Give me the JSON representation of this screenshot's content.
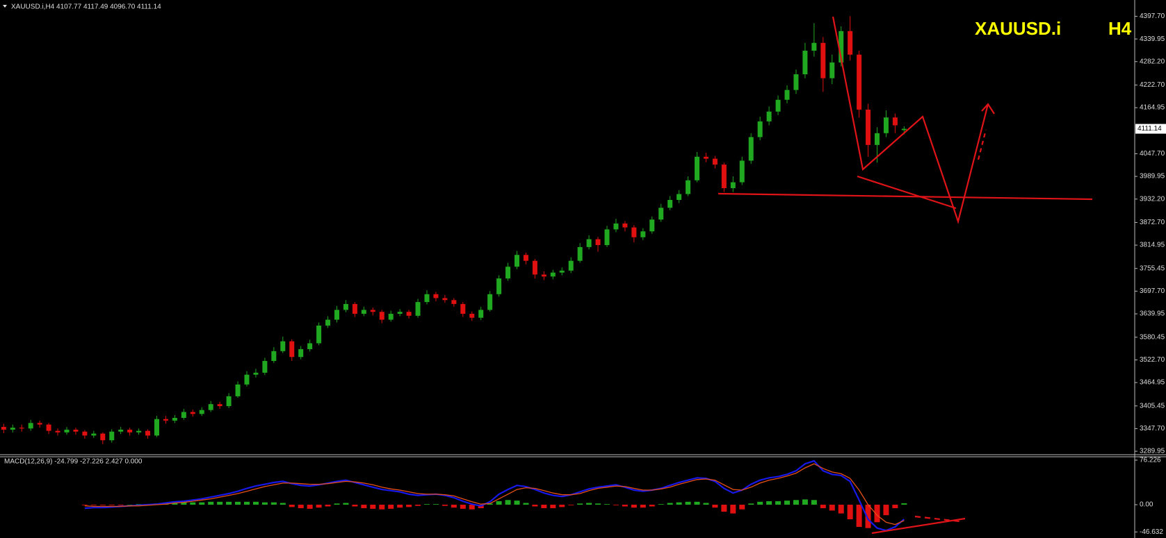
{
  "chart_data": [
    {
      "type": "candlestick",
      "title": "XAUUSD.i,H4 4107.77 4117.49 4096.70 4111.14",
      "symbol_label": "XAUUSD.i",
      "timeframe_label": "H4",
      "up_color": "#21a821",
      "down_color": "#e01010",
      "open": [
        3352,
        3345,
        3350,
        3348,
        3362,
        3358,
        3342,
        3338,
        3345,
        3340,
        3330,
        3335,
        3318,
        3340,
        3345,
        3338,
        3342,
        3330,
        3372,
        3368,
        3375,
        3390,
        3385,
        3395,
        3410,
        3405,
        3430,
        3460,
        3485,
        3490,
        3520,
        3545,
        3570,
        3530,
        3550,
        3565,
        3610,
        3625,
        3650,
        3665,
        3640,
        3650,
        3645,
        3625,
        3640,
        3645,
        3635,
        3670,
        3690,
        3680,
        3675,
        3665,
        3640,
        3630,
        3650,
        3690,
        3730,
        3760,
        3790,
        3775,
        3740,
        3735,
        3745,
        3750,
        3775,
        3810,
        3830,
        3815,
        3855,
        3870,
        3860,
        3835,
        3850,
        3880,
        3910,
        3930,
        3945,
        3980,
        4040,
        4035,
        4020,
        3960,
        3975,
        4030,
        4090,
        4130,
        4155,
        4185,
        4210,
        4250,
        4310,
        4330,
        4240,
        4280,
        4360,
        4300,
        4160,
        4070,
        4100,
        4140,
        4107.77
      ],
      "high": [
        3360,
        3358,
        3358,
        3370,
        3368,
        3362,
        3348,
        3352,
        3350,
        3344,
        3342,
        3338,
        3346,
        3352,
        3350,
        3348,
        3346,
        3380,
        3380,
        3382,
        3398,
        3396,
        3402,
        3418,
        3416,
        3438,
        3468,
        3494,
        3500,
        3528,
        3555,
        3582,
        3575,
        3558,
        3574,
        3618,
        3634,
        3660,
        3675,
        3670,
        3658,
        3656,
        3650,
        3648,
        3652,
        3650,
        3678,
        3700,
        3696,
        3688,
        3680,
        3670,
        3646,
        3658,
        3698,
        3738,
        3770,
        3800,
        3796,
        3780,
        3748,
        3752,
        3758,
        3784,
        3820,
        3840,
        3836,
        3864,
        3882,
        3876,
        3866,
        3858,
        3888,
        3920,
        3940,
        3955,
        3990,
        4052,
        4050,
        4042,
        4025,
        3990,
        4040,
        4100,
        4142,
        4168,
        4196,
        4222,
        4262,
        4330,
        4380,
        4345,
        4300,
        4372,
        4398,
        4310,
        4175,
        4115,
        4158,
        4150,
        4117.49
      ],
      "low": [
        3336,
        3338,
        3340,
        3342,
        3350,
        3334,
        3330,
        3332,
        3332,
        3322,
        3324,
        3308,
        3312,
        3334,
        3330,
        3332,
        3322,
        3326,
        3360,
        3362,
        3370,
        3378,
        3380,
        3390,
        3398,
        3400,
        3426,
        3455,
        3478,
        3484,
        3515,
        3540,
        3520,
        3524,
        3544,
        3560,
        3604,
        3618,
        3644,
        3632,
        3634,
        3636,
        3616,
        3620,
        3634,
        3628,
        3630,
        3664,
        3672,
        3668,
        3658,
        3632,
        3622,
        3624,
        3646,
        3684,
        3724,
        3754,
        3766,
        3730,
        3726,
        3728,
        3738,
        3744,
        3770,
        3804,
        3798,
        3810,
        3848,
        3850,
        3822,
        3828,
        3844,
        3874,
        3904,
        3922,
        3940,
        3975,
        4026,
        4010,
        3950,
        3950,
        3968,
        4022,
        4082,
        4120,
        4146,
        4176,
        4200,
        4240,
        4295,
        4205,
        4225,
        4270,
        4285,
        4140,
        4040,
        4025,
        4090,
        4100,
        4096.7
      ],
      "close": [
        3345,
        3350,
        3348,
        3362,
        3358,
        3342,
        3338,
        3345,
        3340,
        3330,
        3335,
        3318,
        3340,
        3345,
        3338,
        3342,
        3330,
        3372,
        3368,
        3375,
        3390,
        3385,
        3395,
        3410,
        3405,
        3430,
        3460,
        3485,
        3490,
        3520,
        3545,
        3570,
        3530,
        3550,
        3565,
        3610,
        3625,
        3650,
        3665,
        3640,
        3650,
        3645,
        3625,
        3640,
        3645,
        3635,
        3670,
        3690,
        3680,
        3675,
        3665,
        3640,
        3630,
        3650,
        3690,
        3730,
        3760,
        3790,
        3775,
        3740,
        3735,
        3745,
        3750,
        3775,
        3810,
        3830,
        3815,
        3855,
        3870,
        3860,
        3835,
        3850,
        3880,
        3910,
        3930,
        3945,
        3980,
        4040,
        4035,
        4020,
        3960,
        3975,
        4030,
        4090,
        4130,
        4155,
        4185,
        4210,
        4250,
        4310,
        4330,
        4240,
        4280,
        4360,
        4300,
        4160,
        4070,
        4100,
        4140,
        4120,
        4111.14
      ],
      "ylim": [
        3283,
        4425
      ],
      "yticks": [
        {
          "value": 4397.7,
          "label": "4397.70"
        },
        4339.95,
        {
          "value": 4282.2,
          "label": "4282.20"
        },
        {
          "value": 4222.7,
          "label": "4222.70"
        },
        4164.95,
        {
          "value": 4047.7,
          "label": "4047.70"
        },
        3989.95,
        {
          "value": 3932.2,
          "label": "3932.20"
        },
        {
          "value": 3872.7,
          "label": "3872.70"
        },
        3814.95,
        3755.45,
        {
          "value": 3697.7,
          "label": "3697.70"
        },
        3639.95,
        3580.45,
        {
          "value": 3522.7,
          "label": "3522.70"
        },
        3464.95,
        3405.45,
        {
          "value": 3347.7,
          "label": "3347.70"
        },
        3289.95
      ]
    },
    {
      "type": "macd",
      "title": "MACD(12,26,9) -24.799 -27.226 2.427 0.000",
      "series": [
        {
          "color": "#1818e8",
          "values": [
            null,
            null,
            null,
            null,
            null,
            null,
            null,
            null,
            null,
            -6,
            -5,
            -5,
            -4,
            -3,
            -2,
            -1,
            0,
            1,
            3,
            5,
            6,
            8,
            10,
            13,
            16,
            19,
            23,
            28,
            32,
            35,
            38,
            40,
            36,
            33,
            32,
            34,
            37,
            40,
            42,
            38,
            34,
            30,
            26,
            24,
            22,
            18,
            16,
            17,
            18,
            16,
            12,
            6,
            1,
            -2,
            5,
            18,
            26,
            33,
            31,
            26,
            20,
            16,
            14,
            17,
            22,
            27,
            30,
            32,
            34,
            30,
            25,
            23,
            25,
            28,
            33,
            38,
            42,
            46,
            45,
            40,
            28,
            20,
            25,
            35,
            42,
            46,
            48,
            52,
            58,
            70,
            75,
            58,
            52,
            50,
            40,
            8,
            -25,
            -40,
            -44,
            -38,
            -24.799
          ]
        },
        {
          "color": "#e8501a",
          "values": [
            null,
            null,
            null,
            null,
            null,
            null,
            null,
            null,
            null,
            -2,
            -3,
            -3,
            -3,
            -3,
            -2,
            -2,
            -1,
            0,
            1,
            3,
            4,
            6,
            8,
            10,
            13,
            16,
            19,
            23,
            27,
            31,
            34,
            37,
            37,
            36,
            35,
            35,
            36,
            38,
            40,
            39,
            37,
            34,
            30,
            27,
            25,
            22,
            19,
            18,
            18,
            17,
            15,
            10,
            5,
            1,
            2,
            10,
            18,
            26,
            29,
            28,
            24,
            20,
            17,
            17,
            19,
            24,
            28,
            30,
            32,
            31,
            28,
            25,
            25,
            27,
            30,
            35,
            39,
            43,
            44,
            42,
            34,
            26,
            25,
            30,
            37,
            42,
            45,
            49,
            54,
            63,
            70,
            62,
            56,
            53,
            45,
            25,
            0,
            -18,
            -30,
            -34,
            -27.226
          ]
        }
      ],
      "histogram": {
        "up_color": "#21a821",
        "down_color": "#e01010",
        "values": [
          null,
          null,
          null,
          null,
          null,
          null,
          null,
          null,
          null,
          -1,
          -1,
          -1,
          -1,
          -1,
          0,
          1,
          1,
          2,
          3,
          3,
          4,
          4,
          4,
          5,
          5,
          5,
          5,
          5,
          5,
          4,
          4,
          3,
          -4,
          -6,
          -7,
          -5,
          -3,
          2,
          3,
          -3,
          -6,
          -7,
          -8,
          -7,
          -5,
          -4,
          -2,
          1,
          1,
          -2,
          -5,
          -7,
          -8,
          -6,
          2,
          6,
          8,
          7,
          3,
          -3,
          -6,
          -6,
          -4,
          -1,
          2,
          3,
          2,
          1,
          -1,
          -3,
          -5,
          -5,
          -3,
          1,
          3,
          4,
          5,
          5,
          3,
          -5,
          -12,
          -15,
          -8,
          2,
          5,
          6,
          6,
          7,
          8,
          9,
          8,
          -6,
          -10,
          -15,
          -25,
          -38,
          -40,
          -30,
          -18,
          -6,
          2.427
        ]
      },
      "ylim": [
        -57,
        82
      ],
      "yticks": [
        76.226,
        {
          "value": 0,
          "label": "0.00"
        },
        -46.632
      ]
    }
  ]
}
